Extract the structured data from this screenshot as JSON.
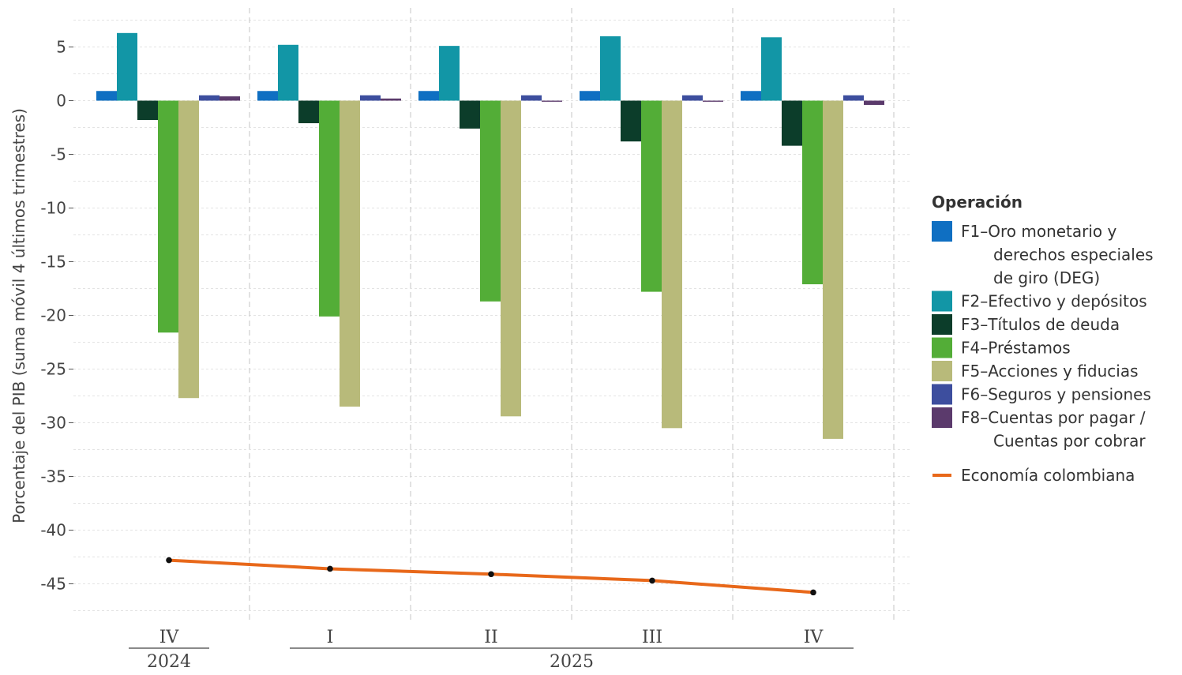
{
  "chart_data": {
    "type": "bar",
    "ylabel": "Porcentaje del PIB (suma móvil 4 últimos trimestres)",
    "ylim": [
      -47.5,
      8.5
    ],
    "yticks": [
      5,
      0,
      -5,
      -10,
      -15,
      -20,
      -25,
      -30,
      -35,
      -40,
      -45
    ],
    "ytick_labels": [
      "5",
      "0",
      "-5",
      "-10",
      "-15",
      "-20",
      "-25",
      "-30",
      "-35",
      "-40",
      "-45"
    ],
    "categories": [
      "IV",
      "I",
      "II",
      "III",
      "IV"
    ],
    "year_groups": [
      {
        "label": "2024",
        "from": 0,
        "to": 0
      },
      {
        "label": "2025",
        "from": 1,
        "to": 4
      }
    ],
    "legend_title": "Operación",
    "series": [
      {
        "name": "F1–Oro monetario y derechos especiales de giro (DEG)",
        "legend_lines": [
          "F1–Oro monetario y",
          "derechos especiales",
          "de giro (DEG)"
        ],
        "color": "#0f6fc2",
        "values": [
          0.9,
          0.9,
          0.9,
          0.9,
          0.9
        ]
      },
      {
        "name": "F2–Efectivo y depósitos",
        "legend_lines": [
          "F2–Efectivo y depósitos"
        ],
        "color": "#1296a6",
        "values": [
          6.3,
          5.2,
          5.1,
          6.0,
          5.9
        ]
      },
      {
        "name": "F3–Títulos de deuda",
        "legend_lines": [
          "F3–Títulos de deuda"
        ],
        "color": "#0c3d2a",
        "values": [
          -1.8,
          -2.1,
          -2.6,
          -3.8,
          -4.2
        ]
      },
      {
        "name": "F4–Préstamos",
        "legend_lines": [
          "F4–Préstamos"
        ],
        "color": "#53ad37",
        "values": [
          -21.6,
          -20.1,
          -18.7,
          -17.8,
          -17.1
        ]
      },
      {
        "name": "F5–Acciones y fiducias",
        "legend_lines": [
          "F5–Acciones y fiducias"
        ],
        "color": "#b8ba7a",
        "values": [
          -27.7,
          -28.5,
          -29.4,
          -30.5,
          -31.5
        ]
      },
      {
        "name": "F6–Seguros y pensiones",
        "legend_lines": [
          "F6–Seguros y pensiones"
        ],
        "color": "#3d4e9e",
        "values": [
          0.5,
          0.5,
          0.5,
          0.5,
          0.5
        ]
      },
      {
        "name": "F8–Cuentas por pagar / Cuentas por cobrar",
        "legend_lines": [
          "F8–Cuentas por pagar /",
          "Cuentas por cobrar"
        ],
        "color": "#5b3a6c",
        "values": [
          0.4,
          0.2,
          -0.1,
          -0.1,
          -0.4
        ]
      }
    ],
    "line": {
      "name": "Economía colombiana",
      "color": "#e8681a",
      "values": [
        -42.8,
        -43.6,
        -44.1,
        -44.7,
        -45.8
      ]
    }
  }
}
